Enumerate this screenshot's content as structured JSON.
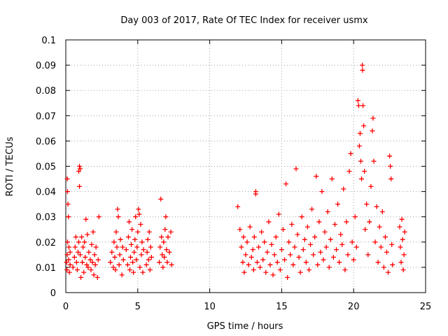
{
  "chart_data": {
    "type": "scatter",
    "title": "Day 003 of 2017, Rate Of TEC Index for receiver usmx",
    "xlabel": "GPS time / hours",
    "ylabel": "ROTI / TECUs",
    "xlim": [
      0,
      25
    ],
    "ylim": [
      0,
      0.1
    ],
    "x_ticks": [
      "0",
      "5",
      "10",
      "15",
      "20",
      "25"
    ],
    "y_ticks": [
      "0",
      "0.01",
      "0.02",
      "0.03",
      "0.04",
      "0.05",
      "0.06",
      "0.07",
      "0.08",
      "0.09",
      "0.1"
    ],
    "grid": true,
    "marker": "+",
    "marker_color": "#ff0000",
    "series": [
      {
        "points": [
          [
            0.05,
            0.012
          ],
          [
            0.08,
            0.009
          ],
          [
            0.1,
            0.015
          ],
          [
            0.12,
            0.02
          ],
          [
            0.15,
            0.035
          ],
          [
            0.1,
            0.045
          ],
          [
            0.12,
            0.04
          ],
          [
            0.18,
            0.03
          ],
          [
            0.2,
            0.013
          ],
          [
            0.22,
            0.018
          ],
          [
            0.25,
            0.008
          ],
          [
            0.3,
            0.011
          ],
          [
            0.3,
            0.016
          ],
          [
            0.5,
            0.01
          ],
          [
            0.6,
            0.014
          ],
          [
            0.65,
            0.018
          ],
          [
            0.7,
            0.022
          ],
          [
            0.75,
            0.012
          ],
          [
            0.8,
            0.009
          ],
          [
            0.85,
            0.016
          ],
          [
            0.9,
            0.02
          ],
          [
            0.9,
            0.048
          ],
          [
            0.95,
            0.05
          ],
          [
            1.0,
            0.049
          ],
          [
            0.95,
            0.042
          ],
          [
            1.0,
            0.015
          ],
          [
            1.05,
            0.006
          ],
          [
            1.1,
            0.022
          ],
          [
            1.15,
            0.012
          ],
          [
            1.2,
            0.018
          ],
          [
            1.25,
            0.008
          ],
          [
            1.3,
            0.02
          ],
          [
            1.35,
            0.014
          ],
          [
            1.4,
            0.029
          ],
          [
            1.45,
            0.011
          ],
          [
            1.5,
            0.023
          ],
          [
            1.55,
            0.01
          ],
          [
            1.6,
            0.016
          ],
          [
            1.7,
            0.013
          ],
          [
            1.75,
            0.009
          ],
          [
            1.8,
            0.019
          ],
          [
            1.85,
            0.012
          ],
          [
            1.9,
            0.024
          ],
          [
            1.95,
            0.007
          ],
          [
            2.0,
            0.015
          ],
          [
            2.05,
            0.011
          ],
          [
            2.1,
            0.018
          ],
          [
            2.2,
            0.006
          ],
          [
            2.3,
            0.03
          ],
          [
            2.25,
            0.013
          ],
          [
            3.1,
            0.012
          ],
          [
            3.2,
            0.016
          ],
          [
            3.3,
            0.01
          ],
          [
            3.35,
            0.02
          ],
          [
            3.4,
            0.014
          ],
          [
            3.45,
            0.009
          ],
          [
            3.5,
            0.024
          ],
          [
            3.55,
            0.018
          ],
          [
            3.6,
            0.033
          ],
          [
            3.65,
            0.03
          ],
          [
            3.7,
            0.011
          ],
          [
            3.75,
            0.015
          ],
          [
            3.8,
            0.021
          ],
          [
            3.9,
            0.007
          ],
          [
            3.95,
            0.018
          ],
          [
            4.0,
            0.013
          ],
          [
            4.2,
            0.017
          ],
          [
            4.3,
            0.011
          ],
          [
            4.35,
            0.022
          ],
          [
            4.4,
            0.028
          ],
          [
            4.45,
            0.009
          ],
          [
            4.5,
            0.014
          ],
          [
            4.55,
            0.019
          ],
          [
            4.6,
            0.025
          ],
          [
            4.65,
            0.012
          ],
          [
            4.7,
            0.008
          ],
          [
            4.75,
            0.016
          ],
          [
            4.8,
            0.021
          ],
          [
            4.85,
            0.03
          ],
          [
            4.9,
            0.013
          ],
          [
            4.95,
            0.018
          ],
          [
            5.0,
            0.024
          ],
          [
            5.05,
            0.033
          ],
          [
            5.1,
            0.031
          ],
          [
            5.15,
            0.01
          ],
          [
            5.2,
            0.027
          ],
          [
            5.25,
            0.015
          ],
          [
            5.3,
            0.02
          ],
          [
            5.35,
            0.008
          ],
          [
            5.4,
            0.017
          ],
          [
            5.6,
            0.011
          ],
          [
            5.65,
            0.016
          ],
          [
            5.7,
            0.021
          ],
          [
            5.75,
            0.013
          ],
          [
            5.8,
            0.024
          ],
          [
            5.85,
            0.009
          ],
          [
            5.9,
            0.018
          ],
          [
            5.95,
            0.014
          ],
          [
            6.5,
            0.012
          ],
          [
            6.55,
            0.018
          ],
          [
            6.6,
            0.037
          ],
          [
            6.65,
            0.022
          ],
          [
            6.7,
            0.015
          ],
          [
            6.75,
            0.01
          ],
          [
            6.8,
            0.02
          ],
          [
            6.85,
            0.014
          ],
          [
            6.9,
            0.025
          ],
          [
            6.95,
            0.03
          ],
          [
            7.0,
            0.017
          ],
          [
            7.05,
            0.012
          ],
          [
            7.1,
            0.022
          ],
          [
            7.2,
            0.016
          ],
          [
            7.3,
            0.024
          ],
          [
            7.35,
            0.011
          ],
          [
            11.95,
            0.034
          ],
          [
            12.1,
            0.025
          ],
          [
            12.2,
            0.018
          ],
          [
            12.3,
            0.012
          ],
          [
            12.35,
            0.022
          ],
          [
            12.4,
            0.008
          ],
          [
            12.5,
            0.015
          ],
          [
            12.6,
            0.02
          ],
          [
            12.7,
            0.011
          ],
          [
            12.8,
            0.026
          ],
          [
            12.9,
            0.014
          ],
          [
            13.0,
            0.017
          ],
          [
            13.05,
            0.009
          ],
          [
            13.1,
            0.022
          ],
          [
            13.2,
            0.04
          ],
          [
            13.2,
            0.039
          ],
          [
            13.3,
            0.012
          ],
          [
            13.4,
            0.018
          ],
          [
            13.5,
            0.01
          ],
          [
            13.6,
            0.024
          ],
          [
            13.7,
            0.013
          ],
          [
            13.8,
            0.02
          ],
          [
            13.9,
            0.008
          ],
          [
            14.0,
            0.016
          ],
          [
            14.1,
            0.028
          ],
          [
            14.2,
            0.011
          ],
          [
            14.3,
            0.019
          ],
          [
            14.4,
            0.007
          ],
          [
            14.5,
            0.015
          ],
          [
            14.6,
            0.022
          ],
          [
            14.7,
            0.012
          ],
          [
            14.8,
            0.031
          ],
          [
            14.9,
            0.009
          ],
          [
            15.0,
            0.017
          ],
          [
            15.1,
            0.025
          ],
          [
            15.2,
            0.013
          ],
          [
            15.3,
            0.043
          ],
          [
            15.4,
            0.006
          ],
          [
            15.5,
            0.02
          ],
          [
            15.6,
            0.015
          ],
          [
            15.7,
            0.027
          ],
          [
            15.8,
            0.011
          ],
          [
            15.9,
            0.018
          ],
          [
            16.0,
            0.049
          ],
          [
            16.1,
            0.023
          ],
          [
            16.2,
            0.014
          ],
          [
            16.3,
            0.008
          ],
          [
            16.4,
            0.03
          ],
          [
            16.5,
            0.017
          ],
          [
            16.6,
            0.021
          ],
          [
            16.7,
            0.012
          ],
          [
            16.8,
            0.026
          ],
          [
            16.9,
            0.009
          ],
          [
            17.0,
            0.019
          ],
          [
            17.1,
            0.033
          ],
          [
            17.2,
            0.015
          ],
          [
            17.3,
            0.022
          ],
          [
            17.4,
            0.046
          ],
          [
            17.5,
            0.011
          ],
          [
            17.6,
            0.028
          ],
          [
            17.7,
            0.016
          ],
          [
            17.8,
            0.04
          ],
          [
            17.9,
            0.013
          ],
          [
            18.0,
            0.024
          ],
          [
            18.1,
            0.018
          ],
          [
            18.2,
            0.032
          ],
          [
            18.3,
            0.01
          ],
          [
            18.4,
            0.021
          ],
          [
            18.5,
            0.045
          ],
          [
            18.6,
            0.014
          ],
          [
            18.7,
            0.027
          ],
          [
            18.8,
            0.017
          ],
          [
            18.9,
            0.035
          ],
          [
            19.0,
            0.012
          ],
          [
            19.1,
            0.023
          ],
          [
            19.2,
            0.019
          ],
          [
            19.3,
            0.041
          ],
          [
            19.4,
            0.009
          ],
          [
            19.5,
            0.028
          ],
          [
            19.6,
            0.015
          ],
          [
            19.7,
            0.048
          ],
          [
            19.8,
            0.055
          ],
          [
            19.9,
            0.02
          ],
          [
            20.0,
            0.013
          ],
          [
            20.1,
            0.03
          ],
          [
            20.2,
            0.018
          ],
          [
            20.3,
            0.076
          ],
          [
            20.35,
            0.074
          ],
          [
            20.4,
            0.058
          ],
          [
            20.45,
            0.063
          ],
          [
            20.5,
            0.052
          ],
          [
            20.55,
            0.045
          ],
          [
            20.6,
            0.09
          ],
          [
            20.62,
            0.088
          ],
          [
            20.65,
            0.074
          ],
          [
            20.7,
            0.066
          ],
          [
            20.75,
            0.048
          ],
          [
            20.8,
            0.025
          ],
          [
            20.9,
            0.035
          ],
          [
            21.0,
            0.015
          ],
          [
            21.1,
            0.028
          ],
          [
            21.2,
            0.042
          ],
          [
            21.3,
            0.064
          ],
          [
            21.35,
            0.069
          ],
          [
            21.4,
            0.052
          ],
          [
            21.5,
            0.02
          ],
          [
            21.6,
            0.034
          ],
          [
            21.7,
            0.012
          ],
          [
            21.8,
            0.026
          ],
          [
            21.9,
            0.018
          ],
          [
            22.0,
            0.032
          ],
          [
            22.1,
            0.01
          ],
          [
            22.2,
            0.022
          ],
          [
            22.3,
            0.016
          ],
          [
            22.4,
            0.008
          ],
          [
            22.5,
            0.054
          ],
          [
            22.55,
            0.05
          ],
          [
            22.6,
            0.045
          ],
          [
            22.65,
            0.019
          ],
          [
            22.7,
            0.011
          ],
          [
            23.2,
            0.026
          ],
          [
            23.25,
            0.018
          ],
          [
            23.3,
            0.012
          ],
          [
            23.35,
            0.029
          ],
          [
            23.4,
            0.021
          ],
          [
            23.45,
            0.009
          ],
          [
            23.5,
            0.015
          ],
          [
            23.55,
            0.024
          ]
        ]
      }
    ]
  }
}
